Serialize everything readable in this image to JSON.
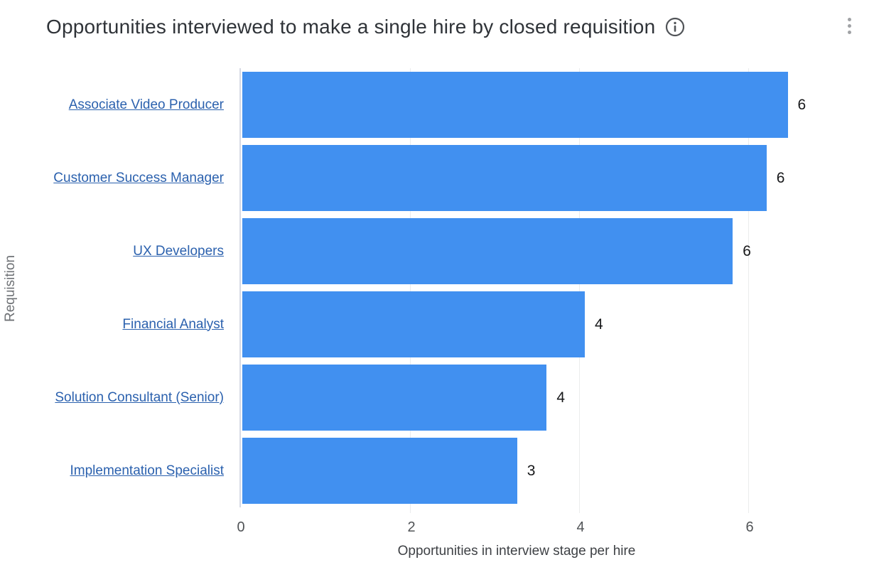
{
  "header": {
    "title": "Opportunities interviewed to make a single hire by closed requisition"
  },
  "chart_data": {
    "type": "bar",
    "orientation": "horizontal",
    "title": "Opportunities interviewed to make a single hire by closed requisition",
    "categories": [
      "Associate Video Producer",
      "Customer Success Manager",
      "UX Developers",
      "Financial Analyst",
      "Solution Consultant (Senior)",
      "Implementation Specialist"
    ],
    "values": [
      6.45,
      6.2,
      5.8,
      4.05,
      3.6,
      3.25
    ],
    "bar_labels": [
      "6",
      "6",
      "6",
      "4",
      "4",
      "3"
    ],
    "xlabel": "Opportunities in interview stage per hire",
    "ylabel": "Requisition",
    "xlim": [
      0,
      7.4
    ],
    "xticks": [
      "0",
      "2",
      "4",
      "6"
    ],
    "grid": "vertical gridlines at x ticks",
    "legend_position": "none",
    "bar_color": "#4190F0",
    "category_link_color": "#2B61AE"
  },
  "icons": {
    "info": "info-circle-icon",
    "menu": "kebab-menu-icon"
  }
}
